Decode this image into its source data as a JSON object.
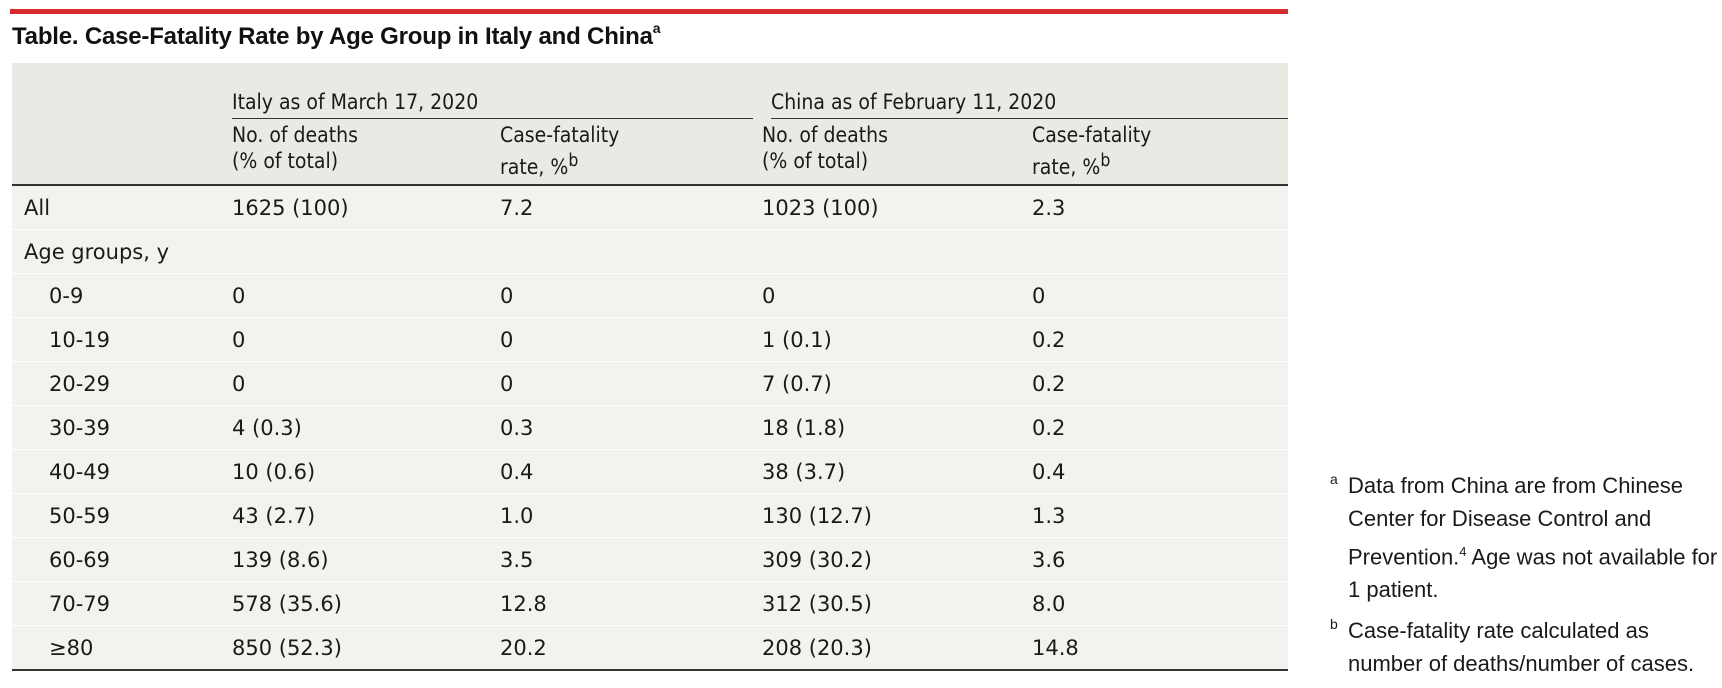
{
  "title": {
    "text": "Table. Case-Fatality Rate by Age Group in Italy and China",
    "mark": "a"
  },
  "colors": {
    "accent_rule": "#d82a2f",
    "header_bg": "#ebe9e4",
    "row_bg": "#f3f2ee"
  },
  "table": {
    "groups": [
      "Italy as of March 17, 2020",
      "China as of February 11, 2020"
    ],
    "subheaders": {
      "deaths_line1": "No. of deaths",
      "deaths_line2": "(% of total)",
      "cfr_line1": "Case-fatality",
      "cfr_line2": "rate, %",
      "cfr_mark": "b"
    },
    "rows": [
      {
        "label": "All",
        "italy_deaths": "1625 (100)",
        "italy_cfr": "7.2",
        "china_deaths": "1023 (100)",
        "china_cfr": "2.3"
      },
      {
        "label": "Age groups, y",
        "italy_deaths": "",
        "italy_cfr": "",
        "china_deaths": "",
        "china_cfr": ""
      },
      {
        "label": "0-9",
        "italy_deaths": "0",
        "italy_cfr": "0",
        "china_deaths": "0",
        "china_cfr": "0"
      },
      {
        "label": "10-19",
        "italy_deaths": "0",
        "italy_cfr": "0",
        "china_deaths": "1 (0.1)",
        "china_cfr": "0.2"
      },
      {
        "label": "20-29",
        "italy_deaths": "0",
        "italy_cfr": "0",
        "china_deaths": "7 (0.7)",
        "china_cfr": "0.2"
      },
      {
        "label": "30-39",
        "italy_deaths": "4 (0.3)",
        "italy_cfr": "0.3",
        "china_deaths": "18 (1.8)",
        "china_cfr": "0.2"
      },
      {
        "label": "40-49",
        "italy_deaths": "10 (0.6)",
        "italy_cfr": "0.4",
        "china_deaths": "38 (3.7)",
        "china_cfr": "0.4"
      },
      {
        "label": "50-59",
        "italy_deaths": "43 (2.7)",
        "italy_cfr": "1.0",
        "china_deaths": "130 (12.7)",
        "china_cfr": "1.3"
      },
      {
        "label": "60-69",
        "italy_deaths": "139 (8.6)",
        "italy_cfr": "3.5",
        "china_deaths": "309 (30.2)",
        "china_cfr": "3.6"
      },
      {
        "label": "70-79",
        "italy_deaths": "578 (35.6)",
        "italy_cfr": "12.8",
        "china_deaths": "312 (30.5)",
        "china_cfr": "8.0"
      },
      {
        "label": "≥80",
        "italy_deaths": "850 (52.3)",
        "italy_cfr": "20.2",
        "china_deaths": "208 (20.3)",
        "china_cfr": "14.8"
      }
    ]
  },
  "footnotes": [
    {
      "mark": "a",
      "text_before": "Data from China are from Chinese Center for Disease Control and Prevention.",
      "ref": "4",
      "text_after": " Age was not available for 1 patient."
    },
    {
      "mark": "b",
      "text": "Case-fatality rate calculated as number of deaths/number of cases."
    }
  ]
}
